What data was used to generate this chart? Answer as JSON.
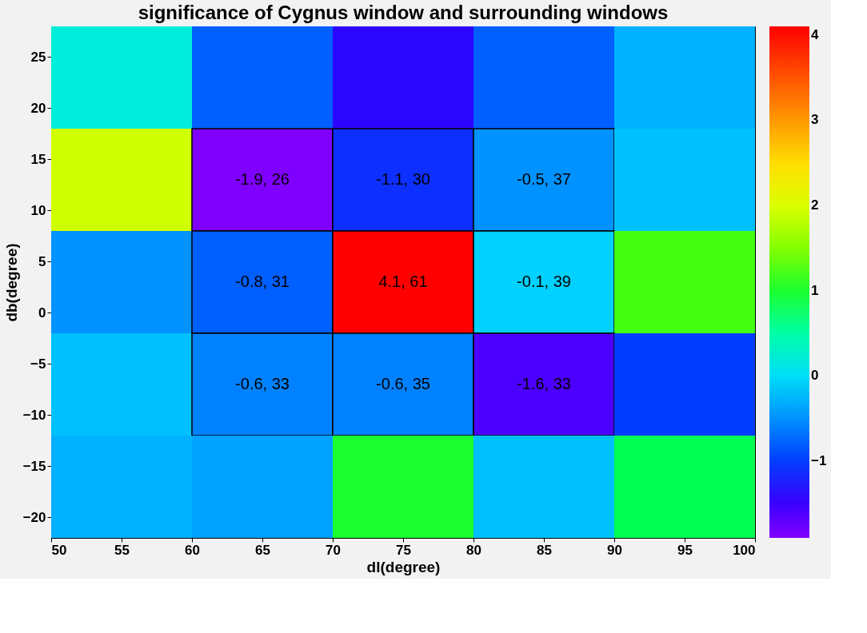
{
  "chart_data": {
    "type": "heatmap",
    "title": "significance of Cygnus window and surrounding windows",
    "xlabel": "dl(degree)",
    "ylabel": "db(degree)",
    "x": [
      55,
      65,
      75,
      85,
      95
    ],
    "y": [
      23,
      13,
      3,
      -7,
      -17
    ],
    "cells": [
      [
        0.2,
        -0.8,
        -1.4,
        -0.8,
        -0.3
      ],
      [
        1.9,
        -1.9,
        -1.1,
        -0.5,
        -0.2
      ],
      [
        -0.5,
        -0.8,
        4.1,
        -0.1,
        1.2
      ],
      [
        -0.2,
        -0.6,
        -0.6,
        -1.6,
        -1.0
      ],
      [
        -0.3,
        -0.4,
        1.0,
        -0.2,
        0.8
      ]
    ],
    "cell_labels": [
      [
        null,
        null,
        null,
        null,
        null
      ],
      [
        null,
        "-1.9, 26",
        "-1.1, 30",
        "-0.5, 37",
        null
      ],
      [
        null,
        "-0.8, 31",
        "4.1, 61",
        "-0.1, 39",
        null
      ],
      [
        null,
        "-0.6, 33",
        "-0.6, 35",
        "-1.6, 33",
        null
      ],
      [
        null,
        null,
        null,
        null,
        null
      ]
    ],
    "xlim": [
      50,
      100
    ],
    "xticks": [
      50,
      55,
      60,
      65,
      70,
      75,
      80,
      85,
      90,
      95,
      100
    ],
    "ylim": [
      -22,
      28
    ],
    "yticks": [
      -20,
      -15,
      -10,
      -5,
      0,
      5,
      10,
      15,
      20,
      25
    ],
    "clim": [
      -1.9,
      4.1
    ],
    "cticks": [
      -1,
      0,
      1,
      2,
      3,
      4
    ]
  }
}
